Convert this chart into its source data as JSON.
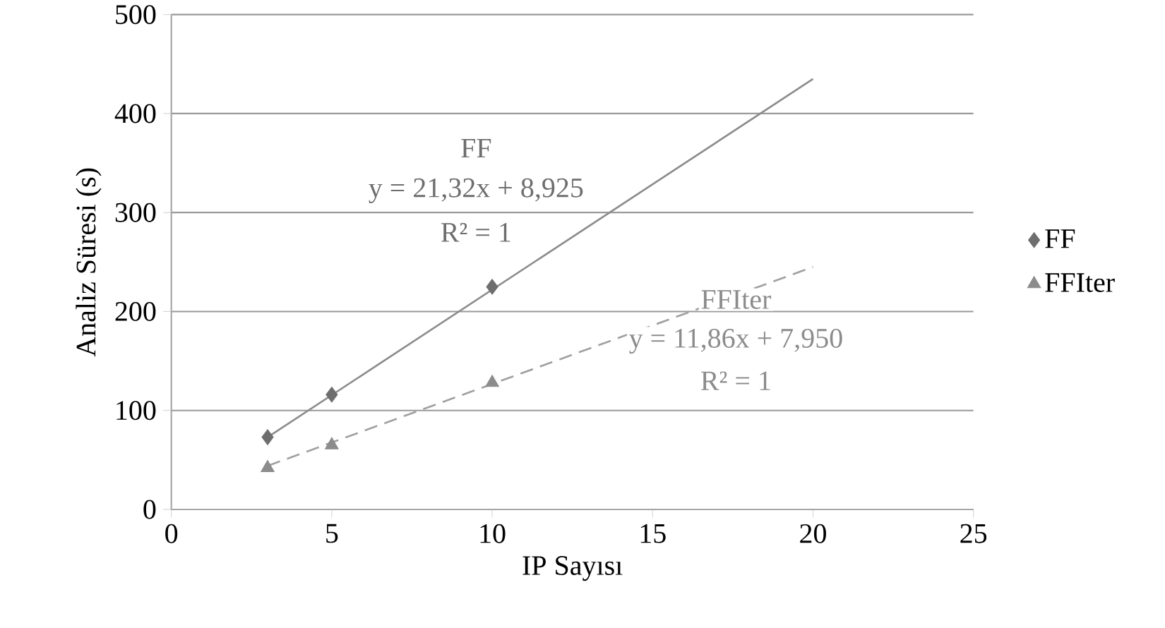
{
  "chart_data": {
    "type": "scatter",
    "xlabel": "IP Sayısı",
    "ylabel": "Analiz Süresi (s)",
    "xlim": [
      0,
      25
    ],
    "ylim": [
      0,
      500
    ],
    "xticks": [
      0,
      5,
      10,
      15,
      20,
      25
    ],
    "yticks": [
      0,
      100,
      200,
      300,
      400,
      500
    ],
    "grid": "y",
    "legend": "right",
    "series": [
      {
        "name": "FF",
        "marker": "diamond",
        "color": "#6e6e6e",
        "x": [
          3,
          5,
          10
        ],
        "values": [
          73,
          116,
          225
        ]
      },
      {
        "name": "FFIter",
        "marker": "triangle",
        "color": "#8c8c8c",
        "x": [
          3,
          5,
          10
        ],
        "values": [
          42,
          65,
          128
        ]
      },
      {
        "type": "line",
        "marker": "none",
        "line_style": "solid",
        "color": "#8c8c8c",
        "x": [
          3,
          20
        ],
        "values": [
          73,
          435
        ]
      },
      {
        "type": "line",
        "marker": "none",
        "line_style": "dashed",
        "color": "#a0a0a0",
        "x": [
          3,
          20
        ],
        "values": [
          44,
          245
        ]
      }
    ],
    "annotations": [
      "FF",
      "y = 21,32x + 8,925",
      "R² = 1",
      "FFIter",
      "y = 11,86x + 7,950",
      "R² = 1"
    ]
  }
}
